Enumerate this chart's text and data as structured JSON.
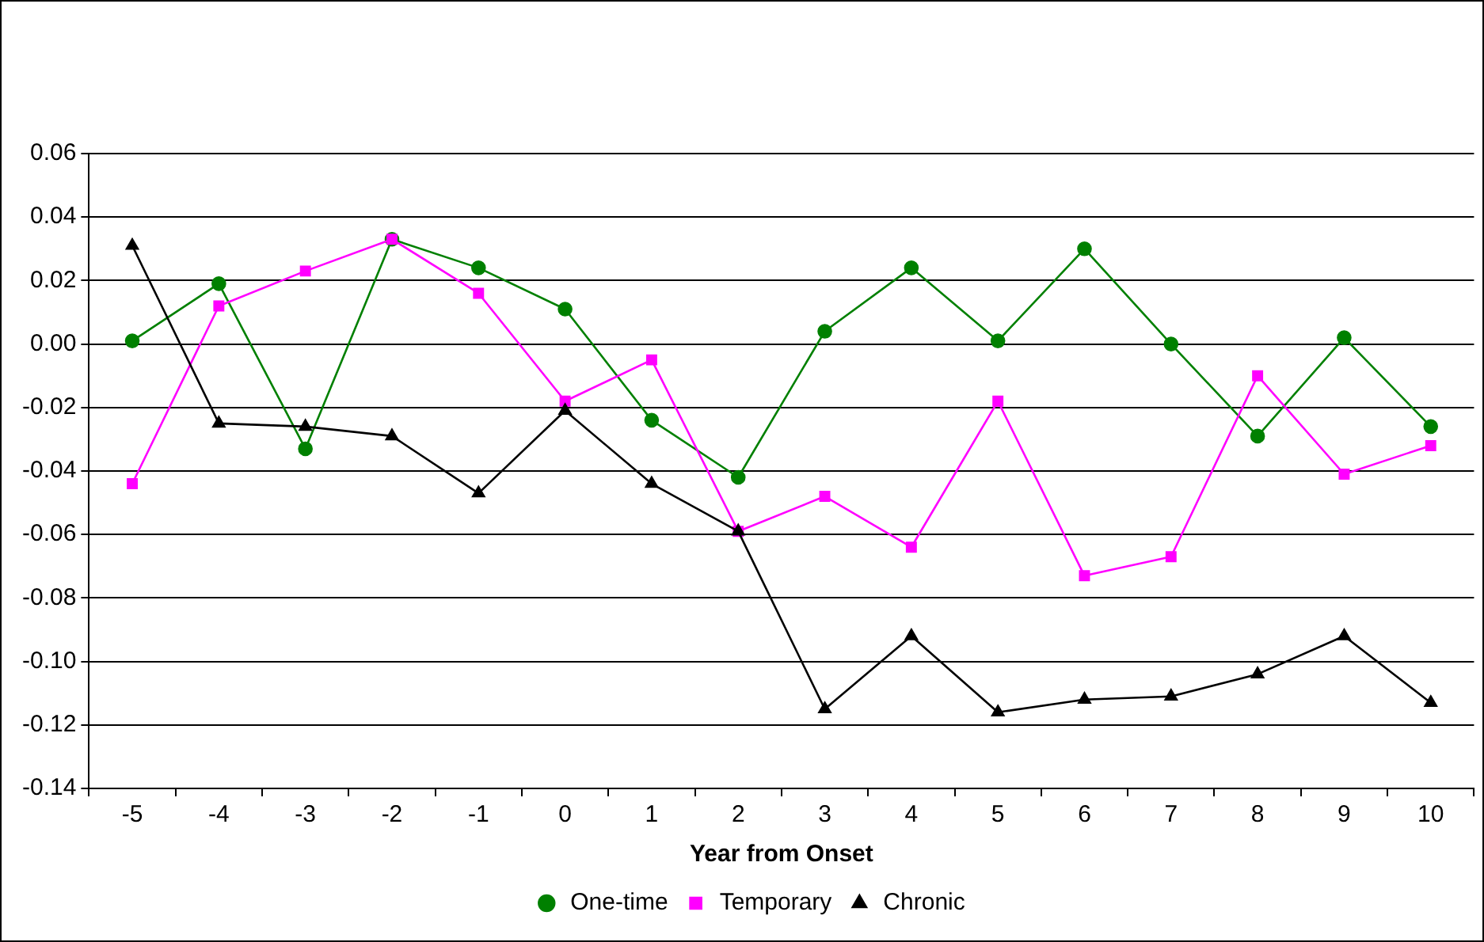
{
  "chart_data": {
    "type": "line",
    "xlabel": "Year from Onset",
    "categories": [
      "-5",
      "-4",
      "-3",
      "-2",
      "-1",
      "0",
      "1",
      "2",
      "3",
      "4",
      "5",
      "6",
      "7",
      "8",
      "9",
      "10"
    ],
    "series": [
      {
        "name": "One-time",
        "color": "#008000",
        "marker": "circle",
        "values": [
          0.001,
          0.019,
          -0.033,
          0.033,
          0.024,
          0.011,
          -0.024,
          -0.042,
          0.004,
          0.024,
          0.001,
          0.03,
          0.0,
          -0.029,
          0.002,
          -0.026
        ]
      },
      {
        "name": "Temporary",
        "color": "#ff00ff",
        "marker": "square",
        "values": [
          -0.044,
          0.012,
          0.023,
          0.033,
          0.016,
          -0.018,
          -0.005,
          -0.059,
          -0.048,
          -0.064,
          -0.018,
          -0.073,
          -0.067,
          -0.01,
          -0.041,
          -0.032
        ]
      },
      {
        "name": "Chronic",
        "color": "#000000",
        "marker": "triangle",
        "values": [
          0.031,
          -0.025,
          -0.026,
          -0.029,
          -0.047,
          -0.021,
          -0.044,
          -0.059,
          -0.115,
          -0.092,
          -0.116,
          -0.112,
          -0.111,
          -0.104,
          -0.092,
          -0.113
        ]
      }
    ],
    "ylim": [
      -0.14,
      0.06
    ],
    "yticks": [
      {
        "value": -0.14,
        "label": "-0.14"
      },
      {
        "value": -0.12,
        "label": "-0.12"
      },
      {
        "value": -0.1,
        "label": "-0.10"
      },
      {
        "value": -0.08,
        "label": "-0.08"
      },
      {
        "value": -0.06,
        "label": "-0.06"
      },
      {
        "value": -0.04,
        "label": "-0.04"
      },
      {
        "value": -0.02,
        "label": "-0.02"
      },
      {
        "value": 0,
        "label": "0.00"
      },
      {
        "value": 0.02,
        "label": "0.02"
      },
      {
        "value": 0.04,
        "label": "0.04"
      },
      {
        "value": 0.06,
        "label": "0.06"
      }
    ],
    "grid": "y",
    "legend": "bottom",
    "line_style": "solid"
  }
}
